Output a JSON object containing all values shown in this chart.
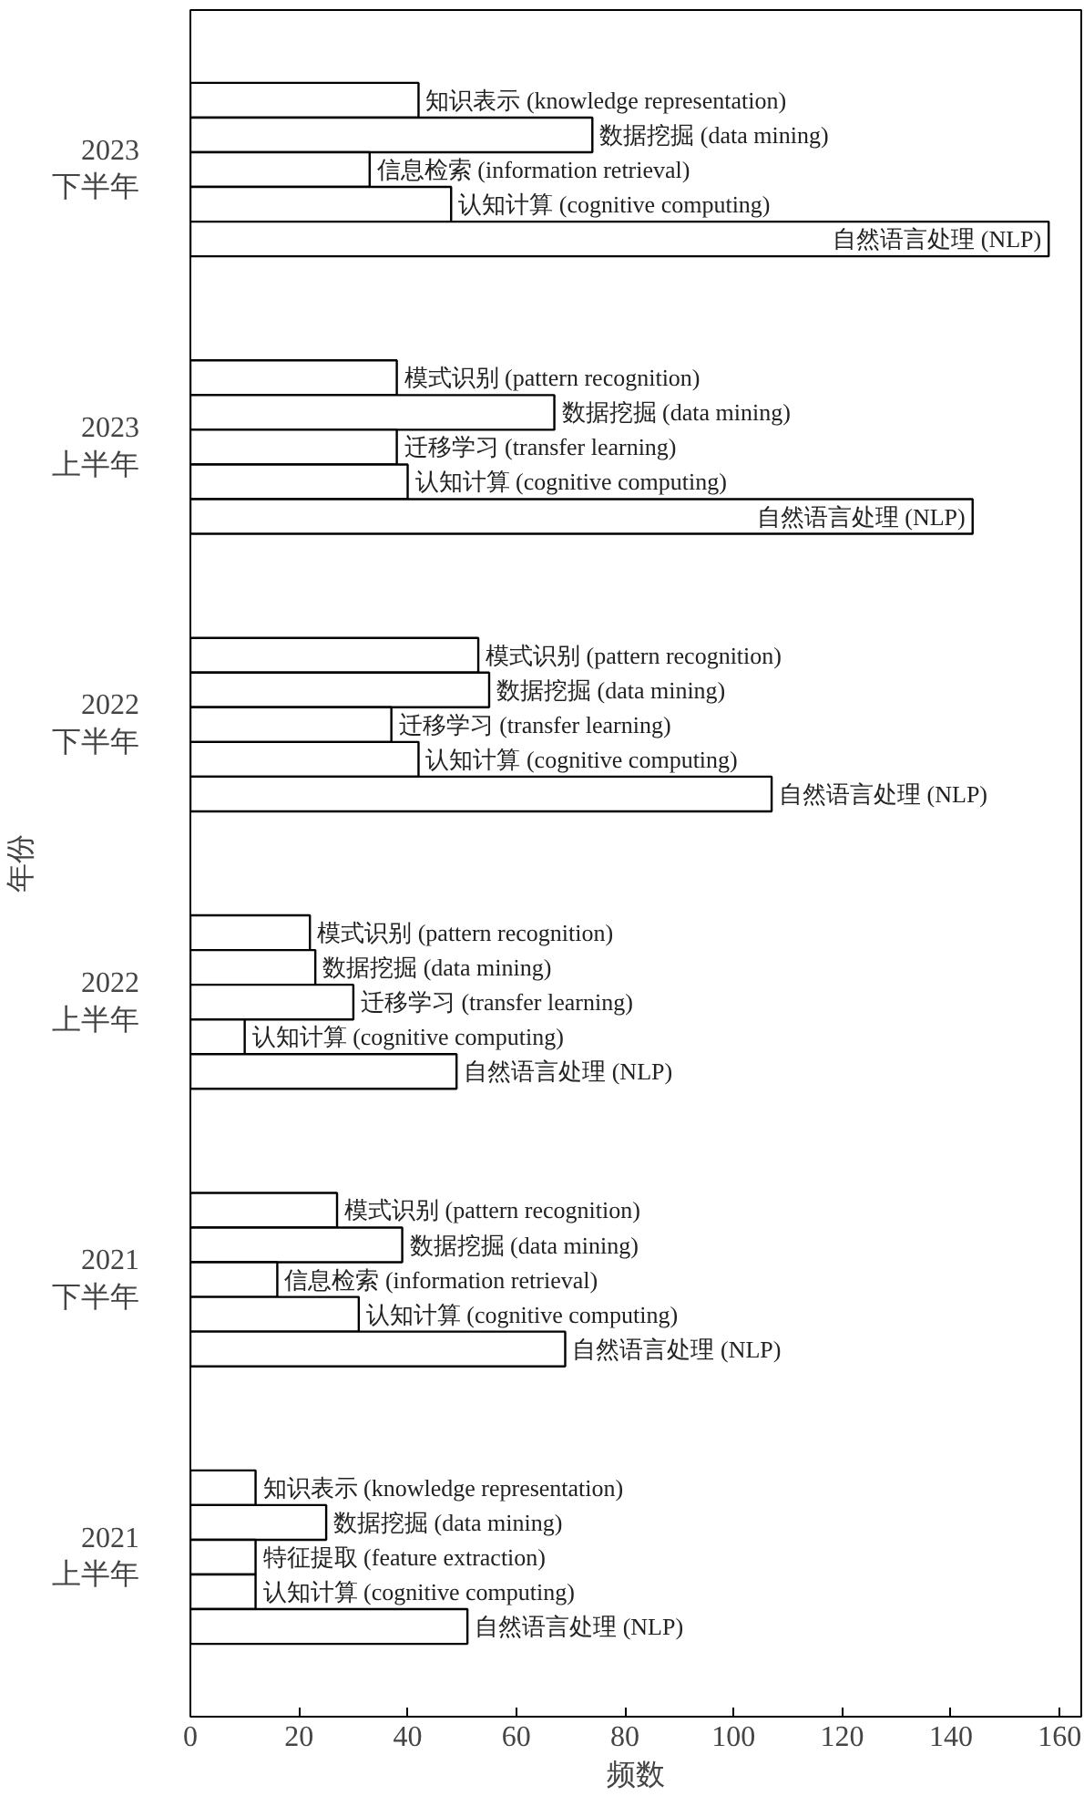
{
  "chart_data": {
    "type": "bar",
    "orientation": "horizontal",
    "xlabel": "频数",
    "ylabel": "年份",
    "categories": [
      "知识表示 (knowledge representation)",
      "数据挖掘 (data mining)",
      "信息检索 (information retrieval)",
      "认知计算 (cognitive computing)",
      "自然语言处理 (NLP)",
      null,
      null,
      null,
      "模式识别 (pattern recognition)",
      "数据挖掘 (data mining)",
      "迁移学习 (transfer learning)",
      "认知计算 (cognitive computing)",
      "自然语言处理 (NLP)",
      null,
      null,
      null,
      "模式识别 (pattern recognition)",
      "数据挖掘 (data mining)",
      "迁移学习 (transfer learning)",
      "认知计算 (cognitive computing)",
      "自然语言处理 (NLP)",
      null,
      null,
      null,
      "模式识别 (pattern recognition)",
      "数据挖掘 (data mining)",
      "迁移学习 (transfer learning)",
      "认知计算 (cognitive computing)",
      "自然语言处理 (NLP)",
      null,
      null,
      null,
      "模式识别 (pattern recognition)",
      "数据挖掘 (data mining)",
      "信息检索 (information retrieval)",
      "认知计算 (cognitive computing)",
      "自然语言处理 (NLP)",
      null,
      null,
      null,
      "知识表示 (knowledge representation)",
      "数据挖掘 (data mining)",
      "特征提取 (feature extraction)",
      "认知计算 (cognitive computing)",
      "自然语言处理 (NLP)"
    ],
    "values": [
      42,
      74,
      33,
      48,
      158,
      null,
      null,
      null,
      38,
      67,
      38,
      40,
      144,
      null,
      null,
      null,
      53,
      55,
      37,
      42,
      107,
      null,
      null,
      null,
      22,
      23,
      30,
      10,
      49,
      null,
      null,
      null,
      27,
      39,
      16,
      31,
      69,
      null,
      null,
      null,
      12,
      25,
      12,
      12,
      51
    ],
    "color": "#ffffff",
    "annotations": [
      "2023\n下半年",
      "2023\n上半年",
      "2022\n下半年",
      "2022\n上半年",
      "2021\n下半年",
      "2021\n上半年"
    ],
    "xlim": [
      0,
      164
    ],
    "xticks": [
      0,
      20,
      40,
      60,
      80,
      100,
      120,
      140,
      160
    ]
  }
}
